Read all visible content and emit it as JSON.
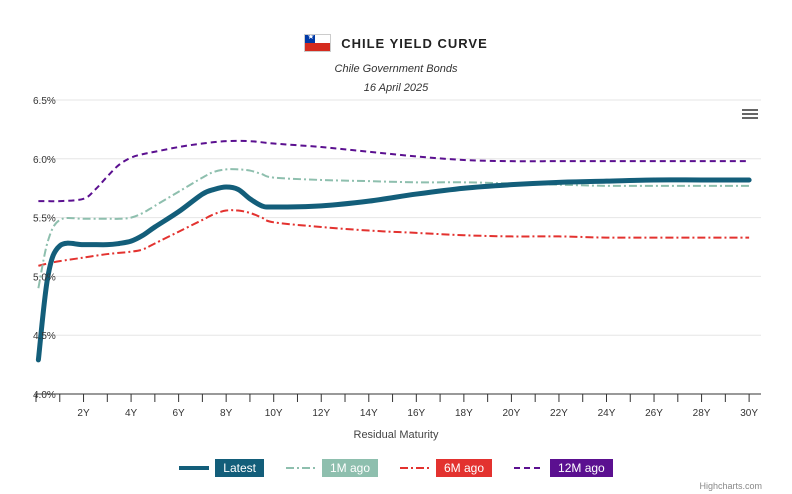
{
  "title": "CHILE YIELD CURVE",
  "subtitle_line1": "Chile Government Bonds",
  "subtitle_line2": "16 April 2025",
  "credits": "Highcharts.com",
  "colors": {
    "latest": "#135e7a",
    "m1": "#8ebfae",
    "m6": "#e3322f",
    "m12": "#5b1090",
    "flag_red": "#d52b1e",
    "flag_blue": "#0039a6"
  },
  "chart_data": {
    "type": "line",
    "title": "CHILE YIELD CURVE",
    "subtitle": "Chile Government Bonds 16 April 2025",
    "xlabel": "Residual Maturity",
    "ylabel": "",
    "xlim": [
      0.0,
      30.5
    ],
    "ylim": [
      4.0,
      6.5
    ],
    "x_ticks": [
      "2Y",
      "4Y",
      "6Y",
      "8Y",
      "10Y",
      "12Y",
      "14Y",
      "16Y",
      "18Y",
      "20Y",
      "22Y",
      "24Y",
      "26Y",
      "28Y",
      "30Y"
    ],
    "x_tick_values": [
      2,
      4,
      6,
      8,
      10,
      12,
      14,
      16,
      18,
      20,
      22,
      24,
      26,
      28,
      30
    ],
    "y_ticks": [
      "4.0%",
      "4.5%",
      "5.0%",
      "5.5%",
      "6.0%",
      "6.5%"
    ],
    "y_tick_values": [
      4.0,
      4.5,
      5.0,
      5.5,
      6.0,
      6.5
    ],
    "grid": true,
    "legend_position": "bottom",
    "series": [
      {
        "name": "Latest",
        "style": "solid",
        "x": [
          0.1,
          0.5,
          1.0,
          2.0,
          3.0,
          3.5,
          4.0,
          4.5,
          5.0,
          6.0,
          7.0,
          7.5,
          8.0,
          8.5,
          9.0,
          9.5,
          10.0,
          12.0,
          14.0,
          16.0,
          18.0,
          20.0,
          22.0,
          24.0,
          26.0,
          28.0,
          30.0
        ],
        "y": [
          4.29,
          5.0,
          5.26,
          5.27,
          5.27,
          5.28,
          5.3,
          5.35,
          5.42,
          5.55,
          5.7,
          5.74,
          5.76,
          5.74,
          5.66,
          5.6,
          5.59,
          5.6,
          5.64,
          5.7,
          5.75,
          5.78,
          5.8,
          5.81,
          5.82,
          5.82,
          5.82
        ]
      },
      {
        "name": "1M ago",
        "style": "dashdot",
        "x": [
          0.1,
          0.5,
          1.0,
          2.0,
          3.0,
          3.5,
          4.0,
          4.5,
          5.0,
          6.0,
          7.0,
          7.5,
          8.0,
          8.5,
          9.0,
          9.5,
          10.0,
          12.0,
          14.0,
          16.0,
          18.0,
          20.0,
          22.0,
          24.0,
          26.0,
          28.0,
          30.0
        ],
        "y": [
          4.9,
          5.3,
          5.48,
          5.49,
          5.49,
          5.49,
          5.5,
          5.54,
          5.6,
          5.72,
          5.84,
          5.89,
          5.91,
          5.91,
          5.9,
          5.87,
          5.84,
          5.82,
          5.81,
          5.8,
          5.8,
          5.79,
          5.78,
          5.77,
          5.77,
          5.77,
          5.77
        ]
      },
      {
        "name": "6M ago",
        "style": "dashdot",
        "x": [
          0.1,
          0.5,
          1.0,
          2.0,
          3.0,
          4.0,
          4.5,
          5.0,
          6.0,
          7.0,
          7.5,
          8.0,
          8.5,
          9.0,
          9.5,
          10.0,
          12.0,
          14.0,
          16.0,
          18.0,
          20.0,
          22.0,
          24.0,
          26.0,
          28.0,
          30.0
        ],
        "y": [
          5.09,
          5.11,
          5.13,
          5.16,
          5.19,
          5.21,
          5.23,
          5.28,
          5.38,
          5.48,
          5.53,
          5.56,
          5.56,
          5.54,
          5.5,
          5.46,
          5.42,
          5.39,
          5.37,
          5.35,
          5.34,
          5.34,
          5.33,
          5.33,
          5.33,
          5.33
        ]
      },
      {
        "name": "12M ago",
        "style": "dash",
        "x": [
          0.1,
          0.5,
          1.0,
          2.0,
          2.5,
          3.0,
          3.5,
          4.0,
          4.5,
          5.0,
          6.0,
          7.0,
          8.0,
          9.0,
          10.0,
          12.0,
          14.0,
          16.0,
          18.0,
          20.0,
          22.0,
          24.0,
          26.0,
          28.0,
          30.0
        ],
        "y": [
          5.64,
          5.64,
          5.64,
          5.66,
          5.74,
          5.85,
          5.95,
          6.01,
          6.04,
          6.06,
          6.1,
          6.13,
          6.15,
          6.15,
          6.13,
          6.1,
          6.06,
          6.02,
          5.99,
          5.98,
          5.98,
          5.98,
          5.98,
          5.98,
          5.98
        ]
      }
    ]
  }
}
